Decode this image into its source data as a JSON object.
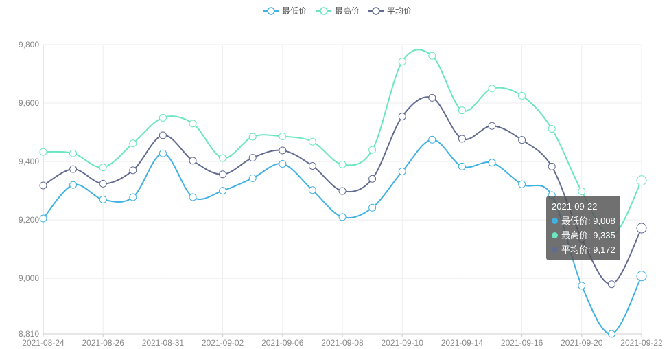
{
  "chart_data": {
    "type": "line",
    "smooth": true,
    "legend_position": "top-center",
    "grid": true,
    "x": [
      "2021-08-24",
      "2021-08-25",
      "2021-08-26",
      "2021-08-27",
      "2021-08-31",
      "2021-09-01",
      "2021-09-02",
      "2021-09-03",
      "2021-09-06",
      "2021-09-07",
      "2021-09-08",
      "2021-09-09",
      "2021-09-10",
      "2021-09-13",
      "2021-09-14",
      "2021-09-15",
      "2021-09-16",
      "2021-09-17",
      "2021-09-20",
      "2021-09-21",
      "2021-09-22"
    ],
    "x_tick_labels": [
      "2021-08-24",
      "2021-08-26",
      "2021-08-31",
      "2021-09-02",
      "2021-09-06",
      "2021-09-08",
      "2021-09-10",
      "2021-09-14",
      "2021-09-16",
      "2021-09-20",
      "2021-09-22"
    ],
    "ylim": [
      8810,
      9800
    ],
    "y_ticks": [
      8810,
      9000,
      9200,
      9400,
      9600,
      9800
    ],
    "y_tick_labels": [
      "8,810",
      "9,000",
      "9,200",
      "9,400",
      "9,600",
      "9,800"
    ],
    "series": [
      {
        "name": "最低价",
        "color": "#3fb1e3",
        "values": [
          9205,
          9320,
          9270,
          9278,
          9428,
          9278,
          9300,
          9343,
          9392,
          9302,
          9210,
          9242,
          9366,
          9475,
          9383,
          9396,
          9322,
          9285,
          8975,
          8810,
          9008
        ]
      },
      {
        "name": "最高价",
        "color": "#6be6c1",
        "values": [
          9433,
          9428,
          9380,
          9462,
          9550,
          9530,
          9412,
          9485,
          9486,
          9468,
          9390,
          9440,
          9742,
          9762,
          9575,
          9650,
          9625,
          9512,
          9298,
          9145,
          9335
        ]
      },
      {
        "name": "平均价",
        "color": "#626c91",
        "values": [
          9318,
          9374,
          9324,
          9370,
          9490,
          9403,
          9356,
          9413,
          9438,
          9385,
          9299,
          9341,
          9554,
          9618,
          9478,
          9522,
          9474,
          9383,
          9136,
          8980,
          9172
        ]
      }
    ]
  },
  "tooltip": {
    "date": "2021-09-22",
    "rows": [
      {
        "label": "最低价: 9,008",
        "color": "#3fb1e3"
      },
      {
        "label": "最高价: 9,335",
        "color": "#6be6c1"
      },
      {
        "label": "平均价: 9,172",
        "color": "#626c91"
      }
    ]
  }
}
